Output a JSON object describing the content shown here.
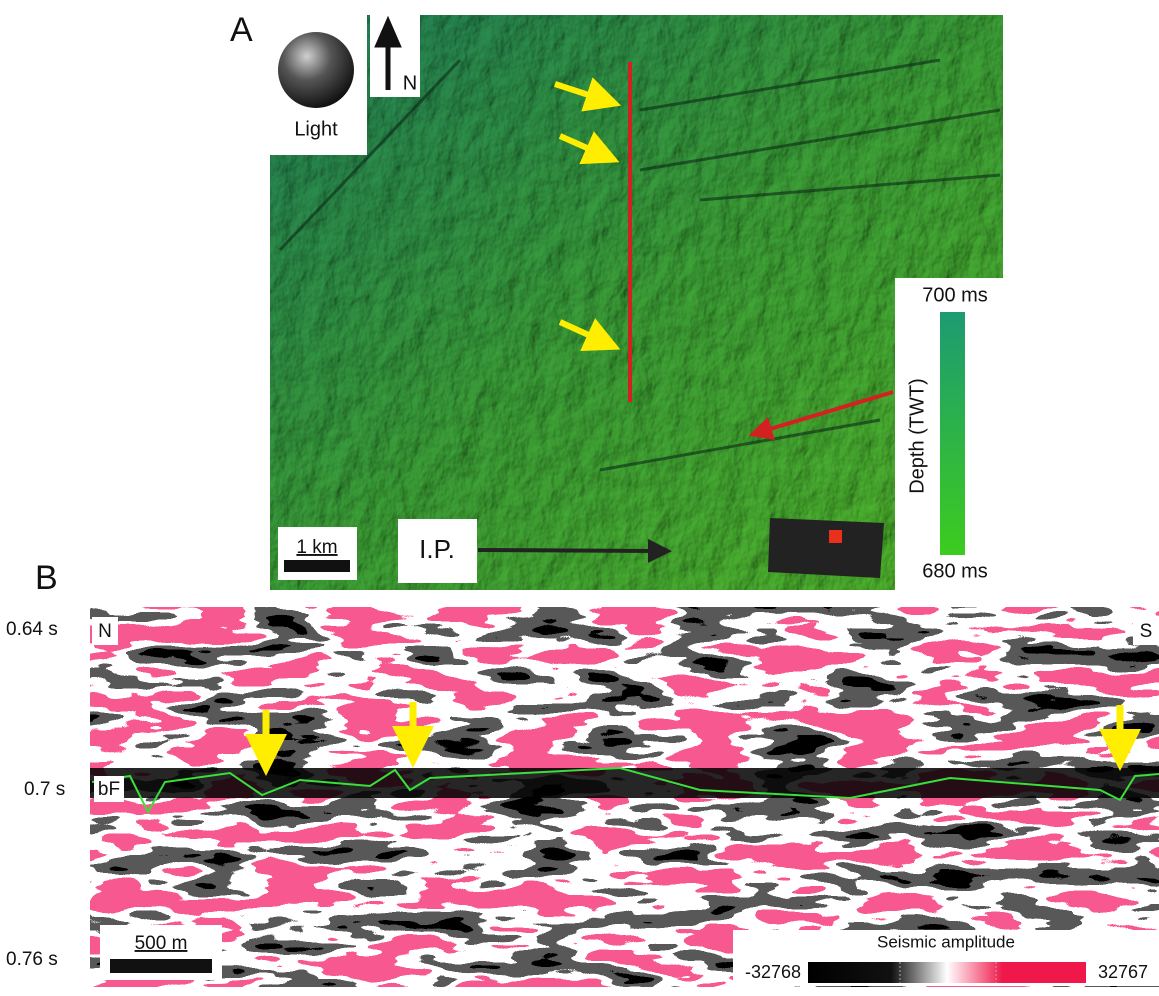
{
  "panel_a": {
    "label": "A",
    "light_label": "Light",
    "north_label": "N",
    "scale_label": "1 km",
    "ip_label": "I.P.",
    "depth_top": "700 ms",
    "depth_title": "Depth (TWT)",
    "depth_bottom": "680 ms"
  },
  "panel_b": {
    "label": "B",
    "time_labels": [
      "0.64 s",
      "0.7 s",
      "0.76 s"
    ],
    "north_label": "N",
    "south_label": "S",
    "horizon_label": "bF",
    "scale_label": "500 m",
    "colorbar": {
      "title": "Seismic amplitude",
      "min": -32768,
      "max": 32767
    }
  }
}
